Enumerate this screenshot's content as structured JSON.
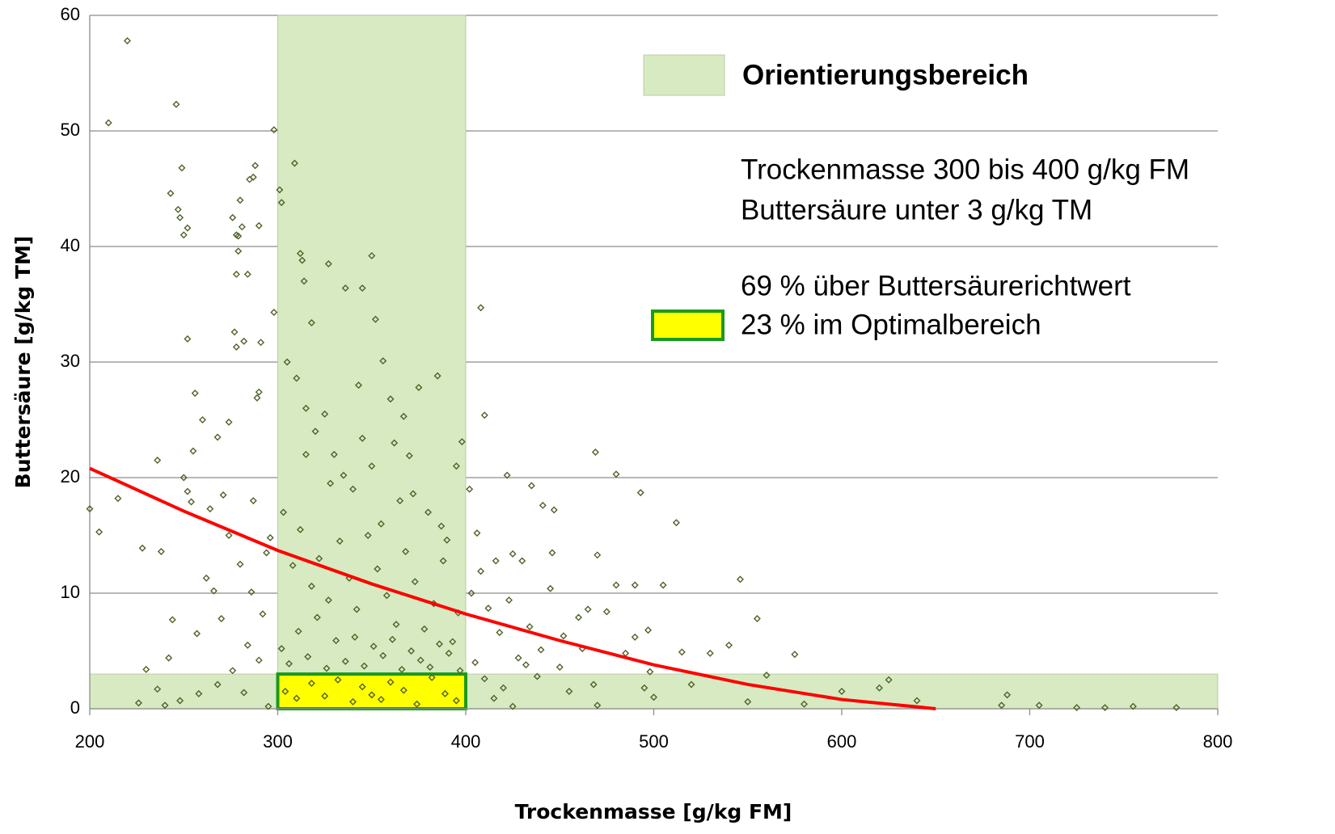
{
  "chart_data": {
    "type": "scatter",
    "xlabel": "Trockenmasse [g/kg FM]",
    "ylabel": "Buttersäure [g/kg TM]",
    "xlim": [
      200,
      800
    ],
    "xticks": [
      200,
      300,
      400,
      500,
      600,
      700,
      800
    ],
    "ylim": [
      0,
      60
    ],
    "yticks": [
      0,
      10,
      20,
      30,
      40,
      50,
      60
    ],
    "grid": true,
    "color": "#4f6228",
    "x": [
      220,
      210,
      246,
      249,
      243,
      247,
      248,
      252,
      250,
      298,
      301,
      302,
      309,
      288,
      287,
      285,
      280,
      276,
      281,
      278,
      279,
      290,
      278,
      284,
      279,
      312,
      313,
      314,
      327,
      350,
      345,
      336,
      408,
      352,
      318,
      298,
      277,
      278,
      282,
      291,
      252,
      256,
      290,
      289,
      260,
      274,
      268,
      255,
      236,
      200,
      205,
      215,
      228,
      238,
      244,
      242,
      250,
      254,
      252,
      410,
      422,
      435,
      441,
      447,
      469,
      480,
      493,
      512,
      470,
      446,
      430,
      425,
      480,
      490,
      505,
      546,
      555,
      575,
      580,
      600,
      625,
      640,
      688,
      685,
      705,
      725,
      740,
      755,
      778,
      620,
      560,
      540,
      530,
      515,
      497,
      498,
      465,
      460,
      452,
      440,
      432,
      420,
      415,
      470,
      500,
      520,
      550,
      305,
      310,
      315,
      320,
      325,
      330,
      335,
      340,
      345,
      350,
      355,
      360,
      365,
      370,
      375,
      380,
      385,
      390,
      395,
      398,
      303,
      308,
      312,
      318,
      322,
      327,
      333,
      338,
      342,
      348,
      353,
      358,
      363,
      368,
      373,
      378,
      383,
      388,
      393,
      396,
      302,
      306,
      311,
      316,
      321,
      326,
      331,
      336,
      341,
      346,
      351,
      356,
      361,
      366,
      371,
      376,
      381,
      386,
      391,
      397,
      304,
      310,
      318,
      325,
      332,
      340,
      345,
      350,
      355,
      360,
      367,
      374,
      382,
      389,
      395,
      315,
      328,
      362,
      372,
      387,
      356,
      343,
      367,
      262,
      266,
      270,
      274,
      280,
      286,
      292,
      296,
      284,
      290,
      276,
      268,
      258,
      248,
      236,
      230,
      226,
      240,
      264,
      271,
      287,
      294,
      257,
      282,
      295,
      403,
      408,
      412,
      418,
      423,
      428,
      434,
      438,
      445,
      450,
      455,
      462,
      468,
      475,
      485,
      490,
      495,
      405,
      410,
      425,
      402,
      406,
      416
    ],
    "values": [
      57.8,
      50.7,
      52.3,
      46.8,
      44.6,
      43.2,
      42.5,
      41.6,
      41,
      50.1,
      44.9,
      43.8,
      47.2,
      47,
      46,
      45.8,
      44,
      42.5,
      41.7,
      41,
      40.9,
      41.8,
      37.6,
      37.6,
      39.6,
      39.4,
      38.8,
      37,
      38.5,
      39.2,
      36.4,
      36.4,
      34.7,
      33.7,
      33.4,
      34.3,
      32.6,
      31.3,
      31.8,
      31.7,
      32,
      27.3,
      27.4,
      26.9,
      25,
      24.8,
      23.5,
      22.3,
      21.5,
      17.3,
      15.3,
      18.2,
      13.9,
      13.6,
      7.7,
      4.4,
      20,
      17.9,
      18.8,
      25.4,
      20.2,
      19.3,
      17.6,
      17.2,
      22.2,
      20.3,
      18.7,
      16.1,
      13.3,
      13.5,
      12.8,
      13.4,
      10.7,
      10.7,
      10.7,
      11.2,
      7.8,
      4.7,
      0.4,
      1.5,
      2.5,
      0.7,
      1.2,
      0.3,
      0.3,
      0.1,
      0.1,
      0.2,
      0.1,
      1.8,
      2.9,
      5.5,
      4.8,
      4.9,
      6.8,
      3.2,
      8.6,
      7.9,
      6.3,
      5.1,
      3.8,
      1.8,
      0.9,
      0.3,
      1,
      2.1,
      0.6,
      30,
      28.6,
      26,
      24,
      25.5,
      22,
      20.2,
      19,
      23.4,
      21,
      16,
      26.8,
      18,
      21.9,
      27.8,
      17,
      28.8,
      14.6,
      21,
      23.1,
      17,
      12.4,
      15.5,
      10.6,
      13,
      9.4,
      14.5,
      11.3,
      8.6,
      15,
      12.1,
      9.8,
      7.3,
      13.6,
      11,
      6.9,
      9.1,
      12.8,
      5.8,
      8.3,
      5.2,
      3.9,
      6.7,
      4.5,
      7.9,
      3.5,
      5.9,
      4.1,
      6.2,
      3.7,
      5.4,
      4.6,
      6,
      3.4,
      5,
      4.2,
      3.6,
      5.6,
      4.8,
      3.3,
      1.5,
      0.9,
      2.2,
      1.1,
      2.5,
      0.6,
      1.9,
      1.2,
      0.8,
      2.3,
      1.6,
      0.4,
      2.7,
      1.3,
      0.7,
      22,
      19.5,
      23,
      18.6,
      15.8,
      30.1,
      28,
      25.3,
      11.3,
      10.2,
      7.8,
      15,
      12.5,
      10.1,
      8.2,
      14.8,
      5.5,
      4.2,
      3.3,
      2.1,
      1.3,
      0.7,
      1.7,
      3.4,
      0.5,
      0.3,
      17.3,
      18.5,
      18,
      13.5,
      6.5,
      1.4,
      0.2,
      10,
      11.9,
      8.7,
      6.6,
      9.4,
      4.4,
      7.1,
      2.8,
      10.4,
      3.6,
      1.5,
      5.2,
      2.1,
      8.4,
      4.8,
      6.2,
      1.8,
      4,
      2.6,
      0.2,
      19,
      15.2,
      12.8
    ],
    "trend": {
      "color": "#ff0000",
      "x": [
        200,
        250,
        300,
        350,
        400,
        450,
        500,
        550,
        600,
        650
      ],
      "values": [
        20.8,
        17.1,
        13.7,
        10.8,
        8.2,
        5.9,
        3.8,
        2.1,
        0.8,
        0
      ]
    },
    "regions": [
      {
        "x": [
          300,
          400
        ],
        "y": [
          0,
          60
        ],
        "color": "#d7eac2"
      },
      {
        "x": [
          200,
          800
        ],
        "y": [
          0,
          3
        ],
        "color": "#d7eac2"
      },
      {
        "x": [
          300,
          400
        ],
        "y": [
          0,
          3
        ],
        "color": "#ffff00",
        "border": "#1a9a1a"
      }
    ],
    "legend": [
      {
        "label": "Orientierungsbereich",
        "color": "#d7eac2"
      },
      {
        "label": "23 % im Optimalbereich",
        "color": "#ffff00",
        "border": "#1a9a1a"
      }
    ],
    "annotations": [
      "Trockenmasse 300 bis 400 g/kg FM",
      "Buttersäure unter 3 g/kg TM",
      "69 % über Buttersäurerichtwert"
    ]
  }
}
